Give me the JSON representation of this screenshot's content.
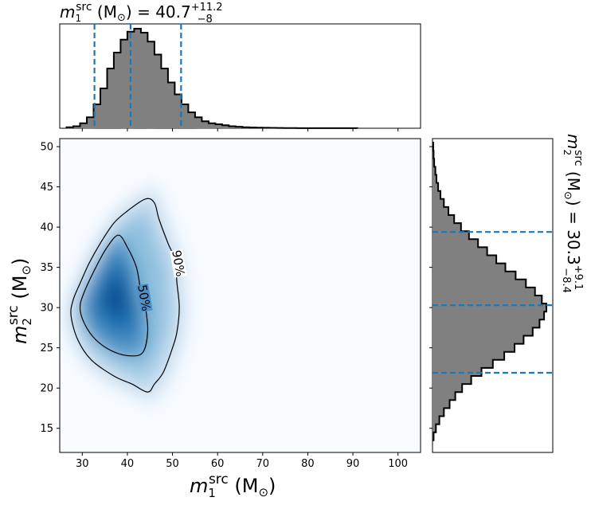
{
  "figure": {
    "top_title": {
      "m": "m",
      "sub": "1",
      "sup": "src",
      "units": " (M",
      "sun": "⊙",
      "close": ") = ",
      "median": "40.7",
      "err_plus": "+11.2",
      "err_minus": "−8"
    },
    "right_title": {
      "m": "m",
      "sub": "2",
      "sup": "src",
      "units": " (M",
      "sun": "⊙",
      "close": ") = ",
      "median": "30.3",
      "err_plus": "+9.1",
      "err_minus": "−8.4"
    },
    "xlabel": {
      "m": "m",
      "sub": "1",
      "sup": "src",
      "units": " (M",
      "sun": "⊙",
      "close": ")"
    },
    "ylabel": {
      "m": "m",
      "sub": "2",
      "sup": "src",
      "units": " (M",
      "sun": "⊙",
      "close": ")"
    },
    "contour_labels": [
      "50%",
      "90%"
    ]
  },
  "chart_data": [
    {
      "type": "heatmap",
      "name": "joint posterior density",
      "x_variable": "m1_src",
      "y_variable": "m2_src",
      "xlim": [
        25,
        105
      ],
      "ylim": [
        12,
        51
      ],
      "xticks": [
        30,
        40,
        50,
        60,
        70,
        80,
        90,
        100
      ],
      "yticks": [
        15,
        20,
        25,
        30,
        35,
        40,
        45,
        50
      ],
      "peak": {
        "x": 37.5,
        "y": 31.5
      },
      "contours": [
        {
          "level": "50%",
          "points": [
            [
              35.5,
              37.5
            ],
            [
              38,
              39
            ],
            [
              40,
              37.5
            ],
            [
              42,
              35
            ],
            [
              43,
              32
            ],
            [
              44,
              30
            ],
            [
              44.5,
              27
            ],
            [
              43.5,
              24.5
            ],
            [
              41,
              24
            ],
            [
              37,
              24.5
            ],
            [
              33,
              26
            ],
            [
              30.5,
              28
            ],
            [
              29.5,
              30
            ],
            [
              30.5,
              32
            ],
            [
              33,
              35
            ]
          ]
        },
        {
          "level": "90%",
          "points": [
            [
              40,
              42
            ],
            [
              44,
              43.5
            ],
            [
              46,
              43
            ],
            [
              47,
              41
            ],
            [
              49,
              38
            ],
            [
              50.5,
              36
            ],
            [
              51,
              33
            ],
            [
              51.5,
              30
            ],
            [
              51,
              27
            ],
            [
              50,
              25
            ],
            [
              48,
              22
            ],
            [
              46,
              20.5
            ],
            [
              44.5,
              19.5
            ],
            [
              41,
              20.5
            ],
            [
              37,
              21.5
            ],
            [
              32,
              23.5
            ],
            [
              29,
              26
            ],
            [
              27.5,
              29
            ],
            [
              28,
              31
            ],
            [
              29.5,
              33
            ],
            [
              31.5,
              35.5
            ],
            [
              34,
              38
            ],
            [
              37,
              40.5
            ]
          ]
        }
      ]
    },
    {
      "type": "bar",
      "name": "marginal m1_src",
      "x_variable": "m1_src",
      "bin_width": 1.5,
      "bin_start": 26.5,
      "values": [
        0.01,
        0.02,
        0.05,
        0.11,
        0.24,
        0.4,
        0.6,
        0.76,
        0.89,
        0.97,
        1.0,
        0.96,
        0.87,
        0.74,
        0.6,
        0.46,
        0.34,
        0.24,
        0.16,
        0.11,
        0.07,
        0.05,
        0.04,
        0.03,
        0.02,
        0.015,
        0.01,
        0.008,
        0.006,
        0.005,
        0.004,
        0.003,
        0.002,
        0.002,
        0.001,
        0.001,
        0.001,
        0.001,
        0.001,
        0.001,
        0.001,
        0.001,
        0.001
      ],
      "quantile_lines": [
        32.7,
        40.7,
        51.9
      ]
    },
    {
      "type": "bar",
      "name": "marginal m2_src",
      "orientation": "horizontal",
      "y_variable": "m2_src",
      "bin_width": 1.0,
      "bin_start": 13.5,
      "values": [
        0.01,
        0.03,
        0.06,
        0.1,
        0.15,
        0.2,
        0.26,
        0.34,
        0.43,
        0.53,
        0.63,
        0.72,
        0.8,
        0.88,
        0.94,
        0.98,
        1.0,
        0.96,
        0.9,
        0.82,
        0.73,
        0.64,
        0.56,
        0.48,
        0.4,
        0.32,
        0.25,
        0.19,
        0.14,
        0.1,
        0.07,
        0.05,
        0.035,
        0.025,
        0.015,
        0.01,
        0.006
      ],
      "quantile_lines": [
        21.9,
        30.3,
        39.4
      ]
    }
  ]
}
